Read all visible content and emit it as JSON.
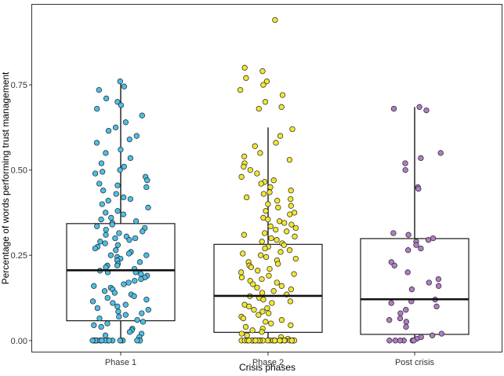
{
  "chart_data": {
    "type": "box",
    "xlabel": "Crisis phases",
    "ylabel": "Percentage of words performing trust management",
    "ylim": [
      -0.035,
      0.985
    ],
    "yticks": [
      {
        "value": 0.0,
        "label": "0.00"
      },
      {
        "value": 0.25,
        "label": "0.25"
      },
      {
        "value": 0.5,
        "label": "0.50"
      },
      {
        "value": 0.75,
        "label": "0.75"
      }
    ],
    "grid": false,
    "categories": [
      "Phase 1",
      "Phase 2",
      "Post crisis"
    ],
    "colors": {
      "Phase 1": "#4cbfe6",
      "Phase 2": "#f0e633",
      "Post crisis": "#b07cc6"
    },
    "boxes": [
      {
        "category": "Phase 1",
        "whisker_low": 0.0,
        "q1": 0.058,
        "median": 0.206,
        "q3": 0.343,
        "whisker_high": 0.76
      },
      {
        "category": "Phase 2",
        "whisker_low": 0.0,
        "q1": 0.024,
        "median": 0.131,
        "q3": 0.282,
        "whisker_high": 0.625
      },
      {
        "category": "Post crisis",
        "whisker_low": 0.0,
        "q1": 0.018,
        "median": 0.121,
        "q3": 0.299,
        "whisker_high": 0.685
      }
    ],
    "points": {
      "Phase 1": [
        0.76,
        0.745,
        0.735,
        0.71,
        0.7,
        0.69,
        0.68,
        0.66,
        0.64,
        0.625,
        0.615,
        0.6,
        0.59,
        0.58,
        0.56,
        0.55,
        0.535,
        0.52,
        0.51,
        0.5,
        0.495,
        0.49,
        0.48,
        0.47,
        0.46,
        0.455,
        0.45,
        0.44,
        0.43,
        0.42,
        0.415,
        0.41,
        0.4,
        0.39,
        0.38,
        0.375,
        0.37,
        0.36,
        0.355,
        0.35,
        0.345,
        0.34,
        0.335,
        0.33,
        0.325,
        0.32,
        0.315,
        0.31,
        0.305,
        0.3,
        0.3,
        0.295,
        0.29,
        0.285,
        0.28,
        0.275,
        0.27,
        0.265,
        0.26,
        0.255,
        0.25,
        0.25,
        0.245,
        0.24,
        0.235,
        0.23,
        0.225,
        0.22,
        0.22,
        0.215,
        0.21,
        0.205,
        0.2,
        0.2,
        0.195,
        0.19,
        0.185,
        0.18,
        0.175,
        0.17,
        0.165,
        0.16,
        0.155,
        0.15,
        0.145,
        0.14,
        0.135,
        0.13,
        0.125,
        0.12,
        0.115,
        0.11,
        0.105,
        0.1,
        0.095,
        0.09,
        0.085,
        0.08,
        0.075,
        0.07,
        0.065,
        0.06,
        0.055,
        0.05,
        0.045,
        0.04,
        0.035,
        0.03,
        0.025,
        0.02,
        0.015,
        0.01,
        0.0,
        0.0,
        0.0,
        0.0,
        0.0,
        0.0,
        0.0,
        0.0,
        0.0,
        0.0,
        0.0,
        0.0,
        0.0,
        0.0,
        0.0,
        0.0,
        0.0,
        0.0,
        0.0,
        0.0
      ],
      "Phase 2": [
        0.94,
        0.8,
        0.79,
        0.77,
        0.76,
        0.75,
        0.735,
        0.72,
        0.7,
        0.685,
        0.68,
        0.62,
        0.6,
        0.58,
        0.57,
        0.55,
        0.54,
        0.53,
        0.52,
        0.51,
        0.5,
        0.49,
        0.48,
        0.47,
        0.465,
        0.46,
        0.45,
        0.44,
        0.435,
        0.43,
        0.42,
        0.415,
        0.41,
        0.4,
        0.395,
        0.39,
        0.38,
        0.375,
        0.37,
        0.36,
        0.355,
        0.35,
        0.345,
        0.34,
        0.335,
        0.33,
        0.325,
        0.32,
        0.315,
        0.31,
        0.305,
        0.3,
        0.295,
        0.29,
        0.285,
        0.28,
        0.275,
        0.27,
        0.265,
        0.26,
        0.255,
        0.25,
        0.245,
        0.24,
        0.235,
        0.23,
        0.225,
        0.22,
        0.215,
        0.21,
        0.205,
        0.2,
        0.195,
        0.19,
        0.185,
        0.18,
        0.175,
        0.17,
        0.165,
        0.16,
        0.155,
        0.15,
        0.145,
        0.14,
        0.135,
        0.13,
        0.125,
        0.12,
        0.115,
        0.11,
        0.105,
        0.1,
        0.095,
        0.09,
        0.085,
        0.08,
        0.075,
        0.07,
        0.065,
        0.06,
        0.055,
        0.05,
        0.045,
        0.04,
        0.035,
        0.03,
        0.025,
        0.02,
        0.015,
        0.01,
        0.005,
        0.0,
        0.0,
        0.0,
        0.0,
        0.0,
        0.0,
        0.0,
        0.0,
        0.0,
        0.0,
        0.0,
        0.0,
        0.0,
        0.0,
        0.0,
        0.0,
        0.0,
        0.0,
        0.0,
        0.0,
        0.0,
        0.0,
        0.0,
        0.0,
        0.0,
        0.0,
        0.0,
        0.0,
        0.0,
        0.0
      ],
      "Post crisis": [
        0.685,
        0.68,
        0.675,
        0.55,
        0.535,
        0.52,
        0.5,
        0.45,
        0.445,
        0.315,
        0.31,
        0.3,
        0.295,
        0.29,
        0.28,
        0.27,
        0.265,
        0.23,
        0.22,
        0.2,
        0.18,
        0.17,
        0.16,
        0.15,
        0.12,
        0.115,
        0.11,
        0.1,
        0.09,
        0.08,
        0.065,
        0.06,
        0.055,
        0.04,
        0.02,
        0.015,
        0.01,
        0.005,
        0.0,
        0.0,
        0.0,
        0.0,
        0.0,
        0.0
      ]
    }
  }
}
